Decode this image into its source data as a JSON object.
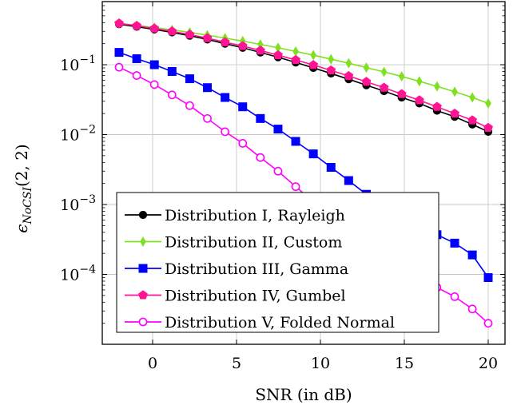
{
  "chart_data": {
    "type": "line",
    "xlabel": "SNR (in dB)",
    "ylabel": "ε_{NoCSI}(2,2)",
    "ylabel_parts": {
      "main": "ϵ",
      "sub": "NoCSI",
      "args": "(2, 2)"
    },
    "xlim": [
      -3,
      21
    ],
    "ylim": [
      1e-05,
      0.8
    ],
    "yscale": "log",
    "grid": true,
    "legend_position": "lower-left",
    "x_ticks": [
      0,
      5,
      10,
      15,
      20
    ],
    "x_tick_labels": [
      "0",
      "5",
      "10",
      "15",
      "20"
    ],
    "y_ticks": [
      0.0001,
      0.001,
      0.01,
      0.1
    ],
    "y_tick_labels": [
      {
        "base": "10",
        "exp": "−4"
      },
      {
        "base": "10",
        "exp": "−3"
      },
      {
        "base": "10",
        "exp": "−2"
      },
      {
        "base": "10",
        "exp": "−1"
      }
    ],
    "x": [
      -2,
      -0.947,
      0.105,
      1.158,
      2.211,
      3.263,
      4.316,
      5.368,
      6.421,
      7.474,
      8.526,
      9.579,
      10.632,
      11.684,
      12.737,
      13.789,
      14.842,
      15.895,
      16.947,
      18,
      19.053,
      20
    ],
    "series": [
      {
        "name": "Distribution I, Rayleigh",
        "color": "#000000",
        "marker": "filled-circle",
        "values": [
          0.38,
          0.35,
          0.32,
          0.29,
          0.26,
          0.23,
          0.2,
          0.175,
          0.15,
          0.128,
          0.108,
          0.09,
          0.075,
          0.062,
          0.051,
          0.042,
          0.034,
          0.028,
          0.022,
          0.018,
          0.014,
          0.011
        ]
      },
      {
        "name": "Distribution II, Custom",
        "color": "#7fe01f",
        "marker": "thin-diamond",
        "values": [
          0.39,
          0.365,
          0.34,
          0.315,
          0.29,
          0.265,
          0.24,
          0.218,
          0.195,
          0.175,
          0.155,
          0.137,
          0.12,
          0.105,
          0.091,
          0.079,
          0.068,
          0.058,
          0.049,
          0.041,
          0.034,
          0.028
        ]
      },
      {
        "name": "Distribution III, Gamma",
        "color": "#0000ff",
        "marker": "filled-square",
        "values": [
          0.15,
          0.122,
          0.1,
          0.08,
          0.063,
          0.047,
          0.034,
          0.025,
          0.017,
          0.012,
          0.008,
          0.0053,
          0.0034,
          0.0022,
          0.0014,
          0.00092,
          0.00068,
          0.0005,
          0.00037,
          0.00028,
          0.00019,
          9e-05
        ]
      },
      {
        "name": "Distribution IV, Gumbel",
        "color": "#ff1493",
        "marker": "filled-pentagon",
        "values": [
          0.39,
          0.36,
          0.33,
          0.3,
          0.27,
          0.24,
          0.21,
          0.185,
          0.16,
          0.137,
          0.117,
          0.099,
          0.083,
          0.069,
          0.057,
          0.047,
          0.038,
          0.031,
          0.025,
          0.02,
          0.016,
          0.0125
        ]
      },
      {
        "name": "Distribution V, Folded Normal",
        "color": "#ff00ff",
        "marker": "open-circle",
        "values": [
          0.092,
          0.07,
          0.052,
          0.037,
          0.026,
          0.017,
          0.011,
          0.0075,
          0.0047,
          0.003,
          0.0018,
          0.0011,
          0.00066,
          0.00041,
          0.00026,
          0.00017,
          0.00011,
          8.5e-05,
          6.5e-05,
          4.8e-05,
          3.2e-05,
          2e-05
        ]
      }
    ]
  }
}
